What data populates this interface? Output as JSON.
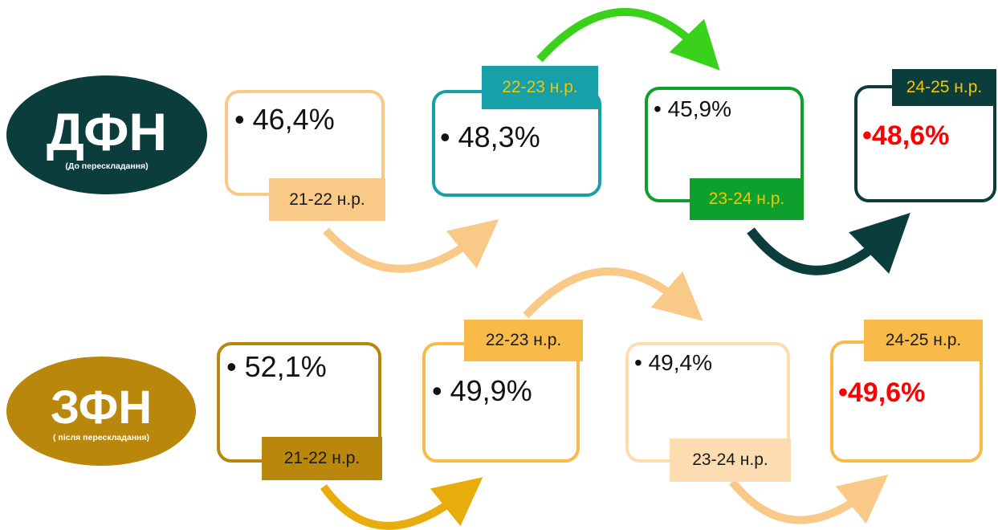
{
  "groups": {
    "dfn": {
      "title": "ДФН",
      "subtitle": "(До перескладання)",
      "color": "#0c3d3d",
      "items": [
        {
          "year": "21-22 н.р.",
          "value": "46,4%",
          "box_color": "#f8c987",
          "tag_color": "#f8c987",
          "tag_text_color": "#1a1a1a"
        },
        {
          "year": "22-23 н.р.",
          "value": "48,3%",
          "box_color": "#17a0a8",
          "tag_color": "#17a0a8",
          "tag_text_color": "#f5c400"
        },
        {
          "year": "23-24 н.р.",
          "value": "45,9%",
          "box_color": "#0ea02c",
          "tag_color": "#0ea02c",
          "tag_text_color": "#f5c400"
        },
        {
          "year": "24-25 н.р.",
          "value": "48,6%",
          "box_color": "#0c3d3d",
          "tag_color": "#0c3d3d",
          "tag_text_color": "#f5c400",
          "highlight": "#ff0000"
        }
      ]
    },
    "zfn": {
      "title": "ЗФН",
      "subtitle": "( після перескладання)",
      "color": "#b8870b",
      "items": [
        {
          "year": "21-22 н.р.",
          "value": "52,1%",
          "box_color": "#b8870b",
          "tag_color": "#b8870b",
          "tag_text_color": "#1a1a1a"
        },
        {
          "year": "22-23 н.р.",
          "value": "49,9%",
          "box_color": "#f8bb4a",
          "tag_color": "#f8bb4a",
          "tag_text_color": "#1a1a1a"
        },
        {
          "year": "23-24 н.р.",
          "value": "49,4%",
          "box_color": "#fcdcb0",
          "tag_color": "#fcdcb0",
          "tag_text_color": "#1a1a1a"
        },
        {
          "year": "24-25 н.р.",
          "value": "49,6%",
          "box_color": "#f8bb4a",
          "tag_color": "#f8bb4a",
          "tag_text_color": "#1a1a1a",
          "highlight": "#ff0000"
        }
      ]
    }
  },
  "bullet": "•",
  "arrow_colors": {
    "dfn_1": "#f8c987",
    "dfn_2": "#3ad11a",
    "dfn_3": "#0c3d3d",
    "zfn_1": "#e8ad0c",
    "zfn_2": "#f8c987",
    "zfn_3": "#f8c987"
  }
}
